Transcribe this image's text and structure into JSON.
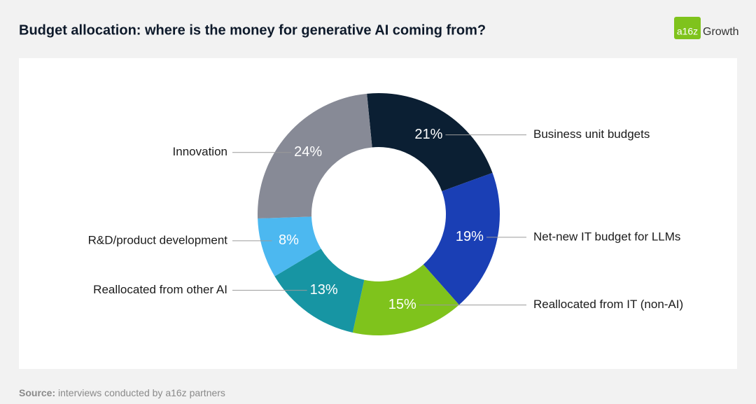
{
  "chart_data": {
    "type": "donut",
    "title": "Budget allocation: where is the money for generative AI coming from?",
    "logo_mark": "a16z",
    "logo_text": "Growth",
    "categories": [
      "Business unit budgets",
      "Net-new IT budget for LLMs",
      "Reallocated from IT (non-AI)",
      "Reallocated from other AI",
      "R&D/product development",
      "Innovation"
    ],
    "values": [
      21,
      19,
      15,
      13,
      8,
      24
    ],
    "value_labels": [
      "21%",
      "19%",
      "15%",
      "13%",
      "8%",
      "24%"
    ],
    "colors": [
      "#0b1f33",
      "#1a3fb5",
      "#7fc31c",
      "#1795a3",
      "#4cb8f0",
      "#878a96"
    ],
    "source_label": "Source:",
    "source": "interviews conducted by a16z partners"
  }
}
